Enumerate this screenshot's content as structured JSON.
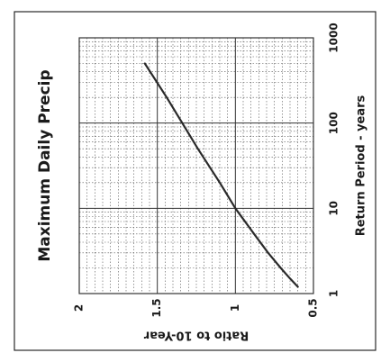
{
  "chart_data": {
    "type": "line",
    "title": "Maximum Daily Precip",
    "xlabel": "Return Period - years",
    "ylabel": "Ratio to 10-Year",
    "x_scale": "log",
    "xlim": [
      1,
      1000
    ],
    "ylim": [
      0.5,
      2
    ],
    "grid": true,
    "orientation": "rotated-90-clockwise",
    "x_ticks": [
      {
        "value": 1,
        "label": "1"
      },
      {
        "value": 10,
        "label": "10"
      },
      {
        "value": 100,
        "label": "100"
      },
      {
        "value": 1000,
        "label": "1000"
      }
    ],
    "y_ticks": [
      {
        "value": 2,
        "label": "2"
      },
      {
        "value": 1.5,
        "label": "1.5"
      },
      {
        "value": 1,
        "label": "1"
      },
      {
        "value": 0.5,
        "label": "0.5"
      }
    ],
    "series": [
      {
        "color": "#2a2a2a",
        "x": [
          1.2,
          1.5,
          2,
          3,
          5,
          10,
          20,
          50,
          100,
          200,
          500
        ],
        "y": [
          0.6,
          0.65,
          0.71,
          0.79,
          0.88,
          1.0,
          1.1,
          1.24,
          1.34,
          1.44,
          1.58
        ]
      }
    ]
  }
}
